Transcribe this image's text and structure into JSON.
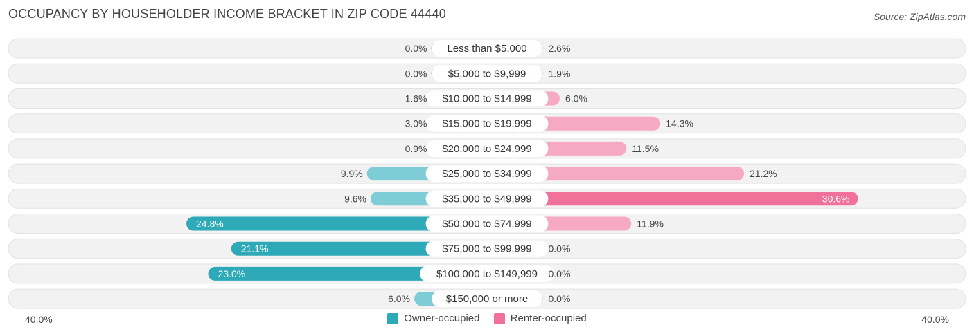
{
  "title": "OCCUPANCY BY HOUSEHOLDER INCOME BRACKET IN ZIP CODE 44440",
  "source": "Source: ZipAtlas.com",
  "colors": {
    "owner": "#2ea9b8",
    "owner_light": "#7ecdd6",
    "renter": "#f0719a",
    "renter_light": "#f6a9c2"
  },
  "chart_data": {
    "type": "bar",
    "orientation": "horizontal-diverging",
    "categories": [
      "Less than $5,000",
      "$5,000 to $9,999",
      "$10,000 to $14,999",
      "$15,000 to $19,999",
      "$20,000 to $24,999",
      "$25,000 to $34,999",
      "$35,000 to $49,999",
      "$50,000 to $74,999",
      "$75,000 to $99,999",
      "$100,000 to $149,999",
      "$150,000 or more"
    ],
    "series": [
      {
        "name": "Owner-occupied",
        "values": [
          0.0,
          0.0,
          1.6,
          3.0,
          0.9,
          9.9,
          9.6,
          24.8,
          21.1,
          23.0,
          6.0
        ],
        "labels": [
          "0.0%",
          "0.0%",
          "1.6%",
          "3.0%",
          "0.9%",
          "9.9%",
          "9.6%",
          "24.8%",
          "21.1%",
          "23.0%",
          "6.0%"
        ]
      },
      {
        "name": "Renter-occupied",
        "values": [
          2.6,
          1.9,
          6.0,
          14.3,
          11.5,
          21.2,
          30.6,
          11.9,
          0.0,
          0.0,
          0.0
        ],
        "labels": [
          "2.6%",
          "1.9%",
          "6.0%",
          "14.3%",
          "11.5%",
          "21.2%",
          "30.6%",
          "11.9%",
          "0.0%",
          "0.0%",
          "0.0%"
        ]
      }
    ],
    "xlim": [
      -40,
      40
    ],
    "axis_left_label": "40.0%",
    "axis_right_label": "40.0%",
    "legend_position": "bottom-center"
  }
}
